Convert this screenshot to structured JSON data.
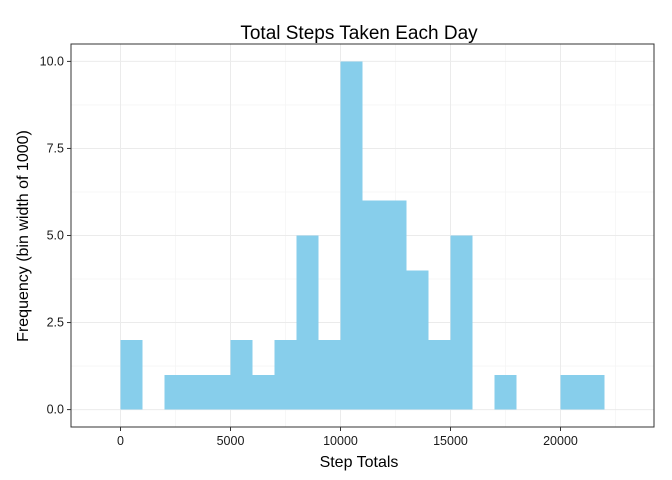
{
  "chart_data": {
    "type": "bar",
    "title": "Total Steps Taken Each Day",
    "xlabel": "Step Totals",
    "ylabel": "Frequency (bin width of 1000)",
    "bin_width": 1000,
    "xlim": [
      -2250,
      24250
    ],
    "ylim": [
      -0.5,
      10.5
    ],
    "x_ticks": [
      0,
      5000,
      10000,
      15000,
      20000
    ],
    "x_tick_labels": [
      "0",
      "5000",
      "10000",
      "15000",
      "20000"
    ],
    "y_ticks": [
      0,
      2.5,
      5,
      7.5,
      10
    ],
    "y_tick_labels": [
      "0.0",
      "2.5",
      "5.0",
      "7.5",
      "10.0"
    ],
    "bins": [
      {
        "x0": 0,
        "x1": 1000,
        "count": 2
      },
      {
        "x0": 1000,
        "x1": 2000,
        "count": 0
      },
      {
        "x0": 2000,
        "x1": 3000,
        "count": 1
      },
      {
        "x0": 3000,
        "x1": 4000,
        "count": 1
      },
      {
        "x0": 4000,
        "x1": 5000,
        "count": 1
      },
      {
        "x0": 5000,
        "x1": 6000,
        "count": 2
      },
      {
        "x0": 6000,
        "x1": 7000,
        "count": 1
      },
      {
        "x0": 7000,
        "x1": 8000,
        "count": 2
      },
      {
        "x0": 8000,
        "x1": 9000,
        "count": 5
      },
      {
        "x0": 9000,
        "x1": 10000,
        "count": 2
      },
      {
        "x0": 10000,
        "x1": 11000,
        "count": 10
      },
      {
        "x0": 11000,
        "x1": 12000,
        "count": 6
      },
      {
        "x0": 12000,
        "x1": 13000,
        "count": 6
      },
      {
        "x0": 13000,
        "x1": 14000,
        "count": 4
      },
      {
        "x0": 14000,
        "x1": 15000,
        "count": 2
      },
      {
        "x0": 15000,
        "x1": 16000,
        "count": 5
      },
      {
        "x0": 16000,
        "x1": 17000,
        "count": 0
      },
      {
        "x0": 17000,
        "x1": 18000,
        "count": 1
      },
      {
        "x0": 18000,
        "x1": 19000,
        "count": 0
      },
      {
        "x0": 19000,
        "x1": 20000,
        "count": 0
      },
      {
        "x0": 20000,
        "x1": 21000,
        "count": 1
      },
      {
        "x0": 21000,
        "x1": 22000,
        "count": 1
      }
    ],
    "bar_color": "#87CEEB",
    "grid": true,
    "grid_color": "#ebebeb",
    "panel_border_color": "#333333",
    "legend": "none"
  }
}
